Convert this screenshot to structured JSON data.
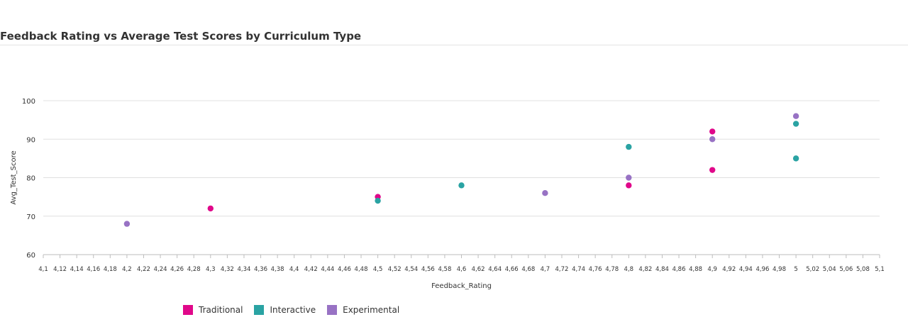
{
  "title": "Feedback Rating vs Average Test Scores by Curriculum Type",
  "chart_data": {
    "type": "scatter",
    "title": "Feedback Rating vs Average Test Scores by Curriculum Type",
    "xlabel": "Feedback_Rating",
    "ylabel": "Avg_Test_Score",
    "xlim": [
      4.1,
      5.1
    ],
    "ylim": [
      60,
      100
    ],
    "xticks": [
      "4,1",
      "4,12",
      "4,14",
      "4,16",
      "4,18",
      "4,2",
      "4,22",
      "4,24",
      "4,26",
      "4,28",
      "4,3",
      "4,32",
      "4,34",
      "4,36",
      "4,38",
      "4,4",
      "4,42",
      "4,44",
      "4,46",
      "4,48",
      "4,5",
      "4,52",
      "4,54",
      "4,56",
      "4,58",
      "4,6",
      "4,62",
      "4,64",
      "4,66",
      "4,68",
      "4,7",
      "4,72",
      "4,74",
      "4,76",
      "4,78",
      "4,8",
      "4,82",
      "4,84",
      "4,86",
      "4,88",
      "4,9",
      "4,92",
      "4,94",
      "4,96",
      "4,98",
      "5",
      "5,02",
      "5,04",
      "5,06",
      "5,08",
      "5,1"
    ],
    "yticks": [
      "60",
      "70",
      "80",
      "90",
      "100"
    ],
    "grid": true,
    "legend_position": "bottom-left",
    "series": [
      {
        "name": "Traditional",
        "color": "#e0088a",
        "points": [
          [
            4.3,
            72
          ],
          [
            4.5,
            75
          ],
          [
            4.8,
            78
          ],
          [
            4.9,
            82
          ],
          [
            4.9,
            92
          ]
        ]
      },
      {
        "name": "Interactive",
        "color": "#2aa3a3",
        "points": [
          [
            4.5,
            74
          ],
          [
            4.6,
            78
          ],
          [
            4.8,
            88
          ],
          [
            5.0,
            85
          ],
          [
            5.0,
            94
          ]
        ]
      },
      {
        "name": "Experimental",
        "color": "#9872c4",
        "points": [
          [
            4.2,
            68
          ],
          [
            4.7,
            76
          ],
          [
            4.8,
            80
          ],
          [
            4.9,
            90
          ],
          [
            5.0,
            96
          ]
        ]
      }
    ]
  }
}
